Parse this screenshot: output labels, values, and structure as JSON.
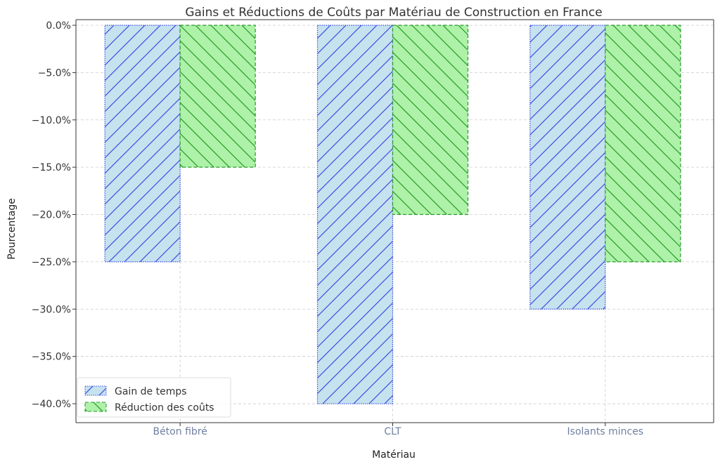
{
  "chart_data": {
    "type": "bar",
    "title": "Gains et Réductions de Coûts par Matériau de Construction en France",
    "xlabel": "Matériau",
    "ylabel": "Pourcentage",
    "categories": [
      "Béton fibré",
      "CLT",
      "Isolants minces"
    ],
    "series": [
      {
        "name": "Gain de temps",
        "values": [
          -25,
          -40,
          -30
        ],
        "fill": "#c6e2ef",
        "stroke": "#3b4fe0",
        "hatch": "/"
      },
      {
        "name": "Réduction des coûts",
        "values": [
          -15,
          -20,
          -25
        ],
        "fill": "#adf2a8",
        "stroke": "#2a9a2a",
        "hatch": "\\"
      }
    ],
    "ylim": [
      -42,
      0
    ],
    "yticks": [
      0,
      -5,
      -10,
      -15,
      -20,
      -25,
      -30,
      -35,
      -40
    ],
    "ytick_labels": [
      "0.0%",
      "−5.0%",
      "−10.0%",
      "−15.0%",
      "−20.0%",
      "−25.0%",
      "−30.0%",
      "−35.0%",
      "−40.0%"
    ],
    "grid": true,
    "legend_position": "lower-left",
    "colors": {
      "tick_label_x": "#6f7fa0",
      "axis": "#333333",
      "grid": "#cccccc"
    }
  }
}
